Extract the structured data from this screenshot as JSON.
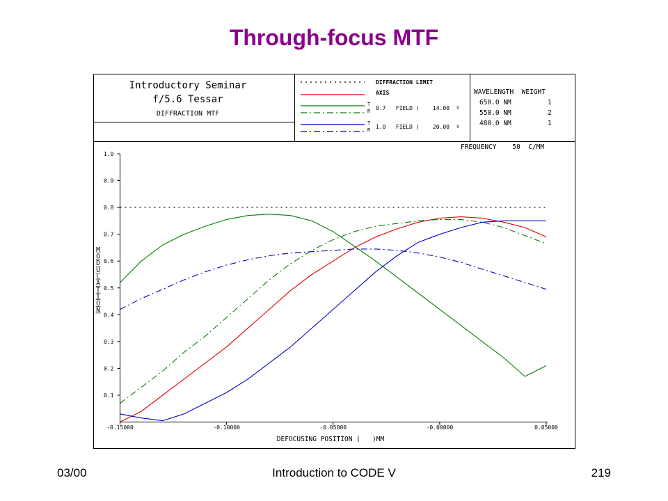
{
  "slide": {
    "title": "Through-focus MTF",
    "footer_left": "03/00",
    "footer_center": "Introduction to CODE V",
    "footer_right": "219"
  },
  "header": {
    "line1": "Introductory Seminar",
    "line2": "f/5.6 Tessar",
    "line3": "DIFFRACTION MTF"
  },
  "legend": {
    "diffraction_limit": "DIFFRACTION LIMIT",
    "axis": "AXIS",
    "tr_t": "T",
    "tr_r": "R",
    "field1": "0.7   FIELD (    14.00  º",
    "field2": "1.0   FIELD (    20.00  º"
  },
  "wavelengths": {
    "header": "WAVELENGTH  WEIGHT",
    "rows": [
      {
        "wl": "650.0 NM",
        "w": "1"
      },
      {
        "wl": "550.0 NM",
        "w": "2"
      },
      {
        "wl": "480.0 NM",
        "w": "1"
      }
    ]
  },
  "colors": {
    "diffraction": "#000000",
    "axis": "#e00000",
    "field07": "#008000",
    "field10": "#0000c0"
  },
  "chart_data": {
    "type": "line",
    "frequency_label": "FREQUENCY    50  C/MM",
    "xlabel": "DEFOCUSING POSITION (   )MM",
    "ylabel": "MODULATION",
    "xlim": [
      -0.15,
      0.05
    ],
    "ylim": [
      0.0,
      1.0
    ],
    "x_tick_labels": [
      "-0.15000",
      "-0.10000",
      "-0.05000",
      "-0.00000",
      "0.05000"
    ],
    "x_ticks": [
      -0.15,
      -0.1,
      -0.05,
      0.0,
      0.05
    ],
    "y_ticks": [
      0.1,
      0.2,
      0.3,
      0.4,
      0.5,
      0.6,
      0.7,
      0.8,
      0.9,
      1.0
    ],
    "y_tick_labels": [
      "0.1",
      "0.2",
      "0.3",
      "0.4",
      "0.5",
      "0.6",
      "0.7",
      "0.8",
      "0.9",
      "1.0"
    ],
    "x": [
      -0.15,
      -0.14,
      -0.13,
      -0.12,
      -0.11,
      -0.1,
      -0.09,
      -0.08,
      -0.07,
      -0.06,
      -0.05,
      -0.04,
      -0.03,
      -0.02,
      -0.01,
      0.0,
      0.01,
      0.02,
      0.03,
      0.04,
      0.05
    ],
    "series": [
      {
        "key": "diffraction",
        "color": "#000000",
        "dash": "2,5",
        "values": [
          0.8,
          0.8,
          0.8,
          0.8,
          0.8,
          0.8,
          0.8,
          0.8,
          0.8,
          0.8,
          0.8,
          0.8,
          0.8,
          0.8,
          0.8,
          0.8,
          0.8,
          0.8,
          0.8,
          0.8,
          0.8
        ]
      },
      {
        "key": "axis",
        "color": "#e00000",
        "dash": "",
        "values": [
          0.0,
          0.04,
          0.1,
          0.16,
          0.22,
          0.28,
          0.35,
          0.42,
          0.49,
          0.55,
          0.6,
          0.65,
          0.69,
          0.72,
          0.745,
          0.76,
          0.765,
          0.76,
          0.745,
          0.725,
          0.69
        ]
      },
      {
        "key": "field07_t",
        "color": "#008000",
        "dash": "",
        "values": [
          0.52,
          0.6,
          0.66,
          0.7,
          0.73,
          0.755,
          0.77,
          0.775,
          0.77,
          0.75,
          0.71,
          0.655,
          0.6,
          0.54,
          0.48,
          0.42,
          0.36,
          0.3,
          0.24,
          0.17,
          0.21
        ]
      },
      {
        "key": "field07_r",
        "color": "#008000",
        "dash": "9,4,2,4",
        "values": [
          0.07,
          0.13,
          0.19,
          0.26,
          0.32,
          0.39,
          0.46,
          0.53,
          0.59,
          0.64,
          0.68,
          0.71,
          0.73,
          0.74,
          0.75,
          0.755,
          0.755,
          0.745,
          0.725,
          0.695,
          0.665
        ]
      },
      {
        "key": "field10_t",
        "color": "#0000c0",
        "dash": "",
        "values": [
          0.03,
          0.015,
          0.005,
          0.03,
          0.07,
          0.11,
          0.16,
          0.22,
          0.28,
          0.35,
          0.42,
          0.49,
          0.56,
          0.62,
          0.67,
          0.7,
          0.725,
          0.745,
          0.75,
          0.75,
          0.75
        ]
      },
      {
        "key": "field10_r",
        "color": "#0000c0",
        "dash": "9,4,2,4",
        "values": [
          0.42,
          0.46,
          0.495,
          0.53,
          0.56,
          0.585,
          0.605,
          0.62,
          0.63,
          0.635,
          0.64,
          0.645,
          0.645,
          0.64,
          0.63,
          0.615,
          0.595,
          0.57,
          0.545,
          0.52,
          0.495
        ]
      }
    ]
  }
}
